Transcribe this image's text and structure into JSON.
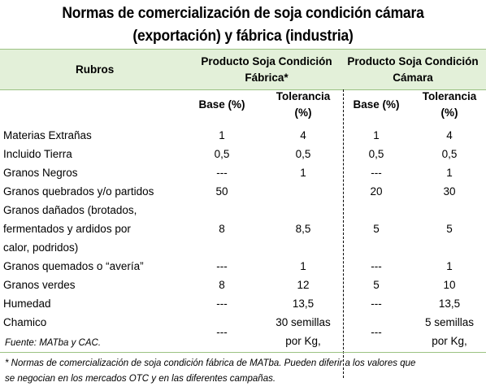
{
  "title_line1": "Normas de comercialización de soja condición cámara",
  "title_line2": "(exportación) y fábrica (industria)",
  "header": {
    "rubros": "Rubros",
    "group_fabrica": [
      "Producto Soja Condición",
      "Fábrica*"
    ],
    "group_camara": [
      "Producto Soja Condición",
      "Cámara"
    ],
    "base": "Base (%)",
    "tolerancia": [
      "Tolerancia",
      "(%)"
    ]
  },
  "rows": [
    {
      "rubro": [
        "Materias Extrañas"
      ],
      "fab_base": "1",
      "fab_tol": [
        "4"
      ],
      "cam_base": "1",
      "cam_tol": [
        "4"
      ]
    },
    {
      "rubro": [
        "Incluido Tierra"
      ],
      "fab_base": "0,5",
      "fab_tol": [
        "0,5"
      ],
      "cam_base": "0,5",
      "cam_tol": [
        "0,5"
      ]
    },
    {
      "rubro": [
        "Granos Negros"
      ],
      "fab_base": "---",
      "fab_tol": [
        "1"
      ],
      "cam_base": "---",
      "cam_tol": [
        "1"
      ]
    },
    {
      "rubro": [
        "Granos quebrados y/o partidos"
      ],
      "fab_base": "50",
      "fab_tol": [
        ""
      ],
      "cam_base": "20",
      "cam_tol": [
        "30"
      ]
    },
    {
      "rubro": [
        "Granos dañados (brotados,",
        "fermentados y ardidos por",
        "calor, podridos)"
      ],
      "fab_base": "8",
      "fab_tol": [
        "8,5"
      ],
      "cam_base": "5",
      "cam_tol": [
        "5"
      ]
    },
    {
      "rubro": [
        "Granos quemados o “avería”"
      ],
      "fab_base": "---",
      "fab_tol": [
        "1"
      ],
      "cam_base": "---",
      "cam_tol": [
        "1"
      ]
    },
    {
      "rubro": [
        "Granos verdes"
      ],
      "fab_base": "8",
      "fab_tol": [
        "12"
      ],
      "cam_base": "5",
      "cam_tol": [
        "10"
      ]
    },
    {
      "rubro": [
        "Humedad"
      ],
      "fab_base": "---",
      "fab_tol": [
        "13,5"
      ],
      "cam_base": "---",
      "cam_tol": [
        "13,5"
      ]
    },
    {
      "rubro": [
        "Chamico"
      ],
      "fab_base": "---",
      "fab_tol": [
        "30 semillas",
        "por Kg,"
      ],
      "cam_base": "---",
      "cam_tol": [
        "5 semillas",
        "por Kg,"
      ]
    }
  ],
  "source": "Fuente: MATba y CAC.",
  "footnote_line1": "* Normas de comercialización de soja condición fábrica de MATba. Pueden diferir a los valores que",
  "footnote_line2": "se negocian en los mercados OTC y en las diferentes campañas."
}
